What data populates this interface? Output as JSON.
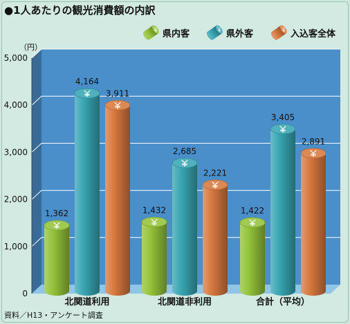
{
  "title": "●1人あたりの観光消費額の内訳",
  "unit": "（円）",
  "source": "資料／H13・アンケート調査",
  "colors": {
    "series1": "#93c33a",
    "series2": "#38a6b3",
    "series3": "#d8793f",
    "plot_bg": "#4a8fc9",
    "floor": "#8fc6e8"
  },
  "icons": [
    "yen-icon"
  ],
  "chart_data": {
    "type": "bar",
    "categories": [
      "北関道利用",
      "北関道非利用",
      "合計（平均）"
    ],
    "series": [
      {
        "name": "県内客",
        "values": [
          1362,
          1432,
          1422
        ],
        "color": "#93c33a"
      },
      {
        "name": "県外客",
        "values": [
          4164,
          2685,
          3405
        ],
        "color": "#38a6b3"
      },
      {
        "name": "入込客全体",
        "values": [
          3911,
          2221,
          2891
        ],
        "color": "#d8793f"
      }
    ],
    "value_labels": [
      [
        "1,362",
        "1,432",
        "1,422"
      ],
      [
        "4,164",
        "2,685",
        "3,405"
      ],
      [
        "3,911",
        "2,221",
        "2,891"
      ]
    ],
    "yticks": [
      0,
      1000,
      2000,
      3000,
      4000,
      5000
    ],
    "ytick_labels": [
      "0",
      "1,000",
      "2,000",
      "3,000",
      "4,000",
      "5,000"
    ],
    "ylim": [
      0,
      5000
    ],
    "grid": true,
    "legend": "top-right"
  }
}
